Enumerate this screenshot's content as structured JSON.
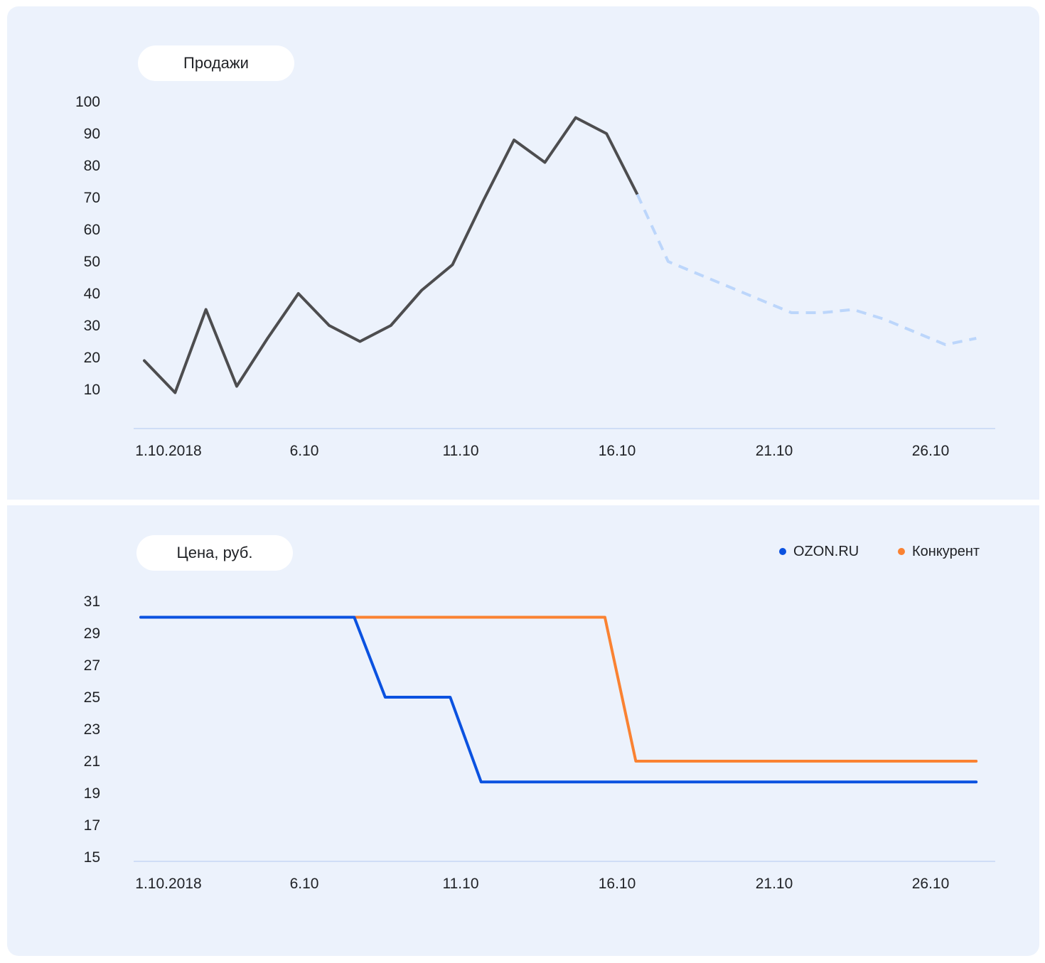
{
  "chart_data": [
    {
      "type": "line",
      "title": "Продажи",
      "xlabel": "",
      "ylabel": "",
      "x_tick_labels": [
        "1.10.2018",
        "6.10",
        "11.10",
        "16.10",
        "21.10",
        "26.10"
      ],
      "y_ticks": [
        10,
        20,
        30,
        40,
        50,
        60,
        70,
        80,
        90,
        100
      ],
      "ylim": [
        0,
        100
      ],
      "xlim": [
        1,
        28.5
      ],
      "grid": false,
      "series": [
        {
          "style": "solid",
          "color": "#4d4d4f",
          "x": [
            1,
            2,
            3,
            4,
            5,
            6,
            7,
            8,
            9,
            10,
            11,
            12,
            13,
            14,
            15,
            16,
            17
          ],
          "y": [
            19,
            9,
            35,
            11,
            26,
            40,
            30,
            25,
            30,
            41,
            49,
            69,
            88,
            81,
            95,
            90,
            71
          ]
        },
        {
          "style": "dashed",
          "color": "#bcd6fb",
          "x": [
            17,
            18,
            19,
            20,
            21,
            22,
            23,
            24,
            25,
            26,
            27,
            28
          ],
          "y": [
            71,
            50,
            46,
            42,
            38,
            34,
            34,
            35,
            32,
            28,
            24,
            26
          ]
        }
      ]
    },
    {
      "type": "line",
      "title": "Цена, руб.",
      "xlabel": "",
      "ylabel": "",
      "x_tick_labels": [
        "1.10.2018",
        "6.10",
        "11.10",
        "16.10",
        "21.10",
        "26.10"
      ],
      "y_ticks": [
        15,
        17,
        19,
        21,
        23,
        25,
        27,
        29,
        31
      ],
      "ylim": [
        15,
        31
      ],
      "xlim": [
        1,
        28.5
      ],
      "grid": false,
      "legend_position": "top-right",
      "series": [
        {
          "name": "Конкурент",
          "color": "#fa8232",
          "x": [
            1,
            7.9,
            16,
            17,
            28
          ],
          "y": [
            30,
            30,
            30,
            21,
            21
          ]
        },
        {
          "name": "OZON.RU",
          "color": "#0b52e0",
          "x": [
            1,
            7.9,
            8.9,
            11,
            12,
            28
          ],
          "y": [
            30,
            30,
            25,
            25,
            19.7,
            19.7
          ]
        }
      ]
    }
  ],
  "legend": {
    "items": [
      {
        "label": "OZON.RU",
        "color": "#0b52e0"
      },
      {
        "label": "Конкурент",
        "color": "#fa8232"
      }
    ]
  }
}
